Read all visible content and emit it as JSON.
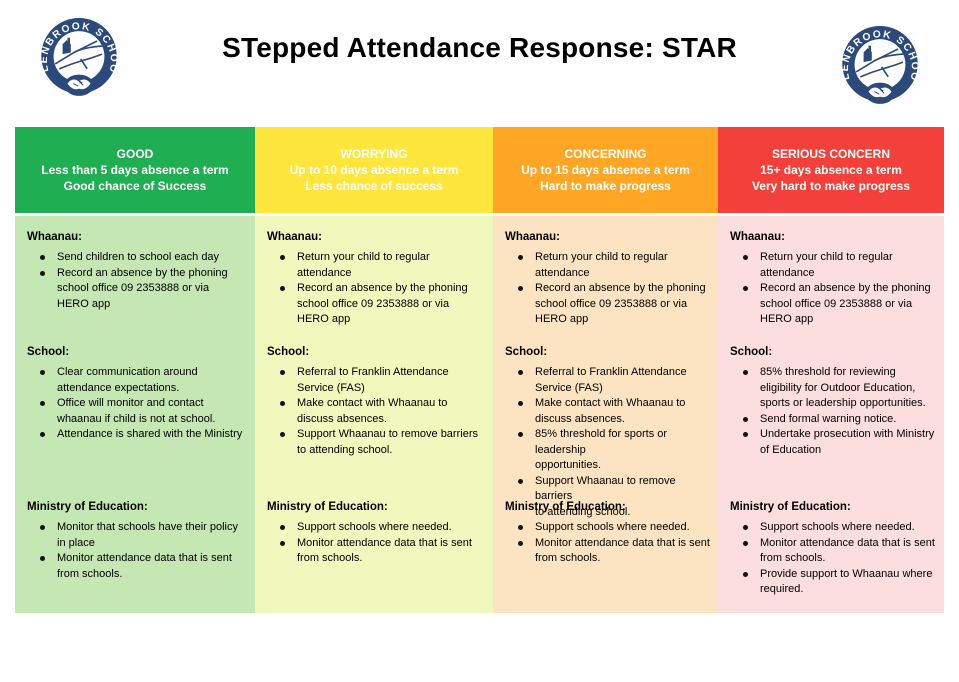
{
  "page": {
    "title": "STepped Attendance Response: STAR"
  },
  "logo": {
    "name": "glenbrook-school-crest",
    "text": "GLENBROOK SCHOOL",
    "ring_color": "#2B4A7B"
  },
  "columns": [
    {
      "id": "good",
      "header": {
        "title": "GOOD",
        "line2": "Less than 5 days absence a term",
        "line3": "Good chance of Success",
        "bg": "#1FAE52",
        "text_color": "#FFFFFF"
      },
      "body_bg": "#C4E7B4",
      "sections": [
        {
          "heading": "Whaanau:",
          "bullets": [
            "Send children to school each day",
            "Record an absence by the phoning\nschool office 09 2353888 or via\nHERO app"
          ]
        },
        {
          "heading": "School:",
          "bullets": [
            "Clear communication around\nattendance expectations.",
            "Office will monitor and contact\nwhaanau if child is not at school.",
            "Attendance is shared with the Ministry"
          ]
        },
        {
          "heading": "Ministry of Education:",
          "bullets": [
            "Monitor that schools have their policy\nin place",
            "Monitor attendance data that is sent\nfrom schools."
          ]
        }
      ]
    },
    {
      "id": "worrying",
      "header": {
        "title": "WORRYING",
        "line2": "Up to 10 days absence a term",
        "line3": "Less chance of success",
        "bg": "#FFE63C",
        "text_color": "#FFFFFF"
      },
      "body_bg": "#F0F8BE",
      "sections": [
        {
          "heading": "Whaanau:",
          "bullets": [
            "Return your child to regular\nattendance",
            "Record an absence by the phoning\nschool office 09 2353888 or via\nHERO app"
          ]
        },
        {
          "heading": "School:",
          "bullets": [
            "Referral to Franklin Attendance\nService (FAS)",
            "Make contact with Whaanau to\ndiscuss absences.",
            "Support Whaanau to remove barriers\nto attending school."
          ]
        },
        {
          "heading": "Ministry of Education:",
          "bullets": [
            "Support schools where needed.",
            "Monitor attendance data that is sent\nfrom schools."
          ]
        }
      ]
    },
    {
      "id": "concerning",
      "header": {
        "title": "CONCERNING",
        "line2": "Up to 15 days absence a term",
        "line3": "Hard to make progress",
        "bg": "#FFA725",
        "text_color": "#FFFFFF"
      },
      "body_bg": "#FCE4C2",
      "sections": [
        {
          "heading": "Whaanau:",
          "bullets": [
            "Return your child to regular\nattendance",
            "Record an absence by the phoning\nschool office 09 2353888 or via\nHERO app"
          ]
        },
        {
          "heading": "School:",
          "bullets": [
            "Referral to Franklin Attendance\nService (FAS)",
            "Make contact with Whaanau to\ndiscuss absences.",
            "85% threshold for sports or leadership\nopportunities.",
            "Support Whaanau to remove barriers\nto attending school."
          ]
        },
        {
          "heading": "Ministry of Education:",
          "bullets": [
            "Support schools where needed.",
            "Monitor attendance data that is sent\nfrom schools."
          ]
        }
      ]
    },
    {
      "id": "serious-concern",
      "header": {
        "title": "SERIOUS CONCERN",
        "line2": "15+ days absence a term",
        "line3": "Very hard to make progress",
        "bg": "#F4403A",
        "text_color": "#FFFFFF"
      },
      "body_bg": "#FCDEDE",
      "sections": [
        {
          "heading": "Whaanau:",
          "bullets": [
            "Return your child to regular\nattendance",
            "Record an absence by the phoning\nschool office 09 2353888 or via\nHERO app"
          ]
        },
        {
          "heading": "School:",
          "bullets": [
            "85% threshold for reviewing\neligibility for Outdoor Education,\nsports or leadership opportunities.",
            "Send formal warning notice.",
            "Undertake prosecution with Ministry\nof Education"
          ]
        },
        {
          "heading": "Ministry of Education:",
          "bullets": [
            "Support schools where needed.",
            "Monitor attendance data that is sent\nfrom schools.",
            "Provide support to Whaanau where\nrequired."
          ]
        }
      ]
    }
  ]
}
